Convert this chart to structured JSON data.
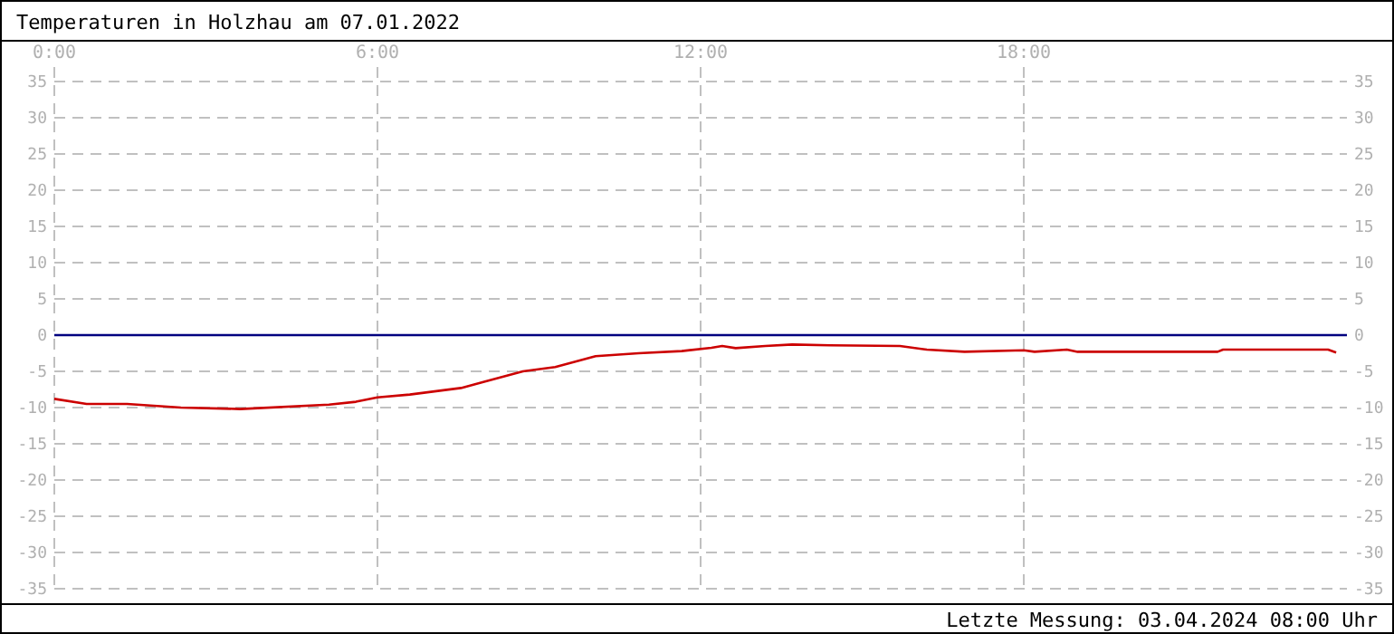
{
  "chart_data": {
    "type": "line",
    "title": "Temperaturen in Holzhau am 07.01.2022",
    "annotations": [
      "Letzte Messung: 03.04.2024 08:00 Uhr"
    ],
    "xlim": [
      0,
      24
    ],
    "xticks": [
      {
        "value": 0,
        "label": "0:00"
      },
      {
        "value": 6,
        "label": "6:00"
      },
      {
        "value": 12,
        "label": "12:00"
      },
      {
        "value": 18,
        "label": "18:00"
      }
    ],
    "ylim": [
      -35,
      35
    ],
    "yticks": [
      -35,
      -30,
      -25,
      -20,
      -15,
      -10,
      -5,
      0,
      5,
      10,
      15,
      20,
      25,
      30,
      35
    ],
    "y2lim": [
      -35,
      35
    ],
    "y2ticks": [
      -35,
      -30,
      -25,
      -20,
      -15,
      -10,
      -5,
      0,
      5,
      10,
      15,
      20,
      25,
      30,
      35
    ],
    "grid": true,
    "marker": "none",
    "line_style": "solid",
    "ref_lines": [
      {
        "axis": "y",
        "value": 0,
        "color": "#000080"
      }
    ],
    "series": [
      {
        "color": "#cc0000",
        "x": [
          0,
          0.6,
          1.35,
          2.35,
          3.45,
          5.1,
          5.6,
          6,
          6.6,
          7.55,
          7.95,
          8.7,
          9.3,
          10.05,
          10.85,
          11.65,
          12.2,
          12.4,
          12.65,
          13.2,
          13.7,
          14.4,
          15.7,
          16.2,
          16.9,
          18,
          18.2,
          18.8,
          19,
          21.6,
          21.7,
          23.65,
          23.8
        ],
        "values": [
          -8.8,
          -9.5,
          -9.5,
          -10,
          -10.2,
          -9.6,
          -9.2,
          -8.6,
          -8.2,
          -7.3,
          -6.5,
          -5,
          -4.4,
          -2.9,
          -2.5,
          -2.2,
          -1.75,
          -1.5,
          -1.8,
          -1.5,
          -1.3,
          -1.4,
          -1.5,
          -2,
          -2.3,
          -2.1,
          -2.3,
          -2,
          -2.3,
          -2.3,
          -2,
          -2,
          -2.4
        ]
      }
    ]
  }
}
